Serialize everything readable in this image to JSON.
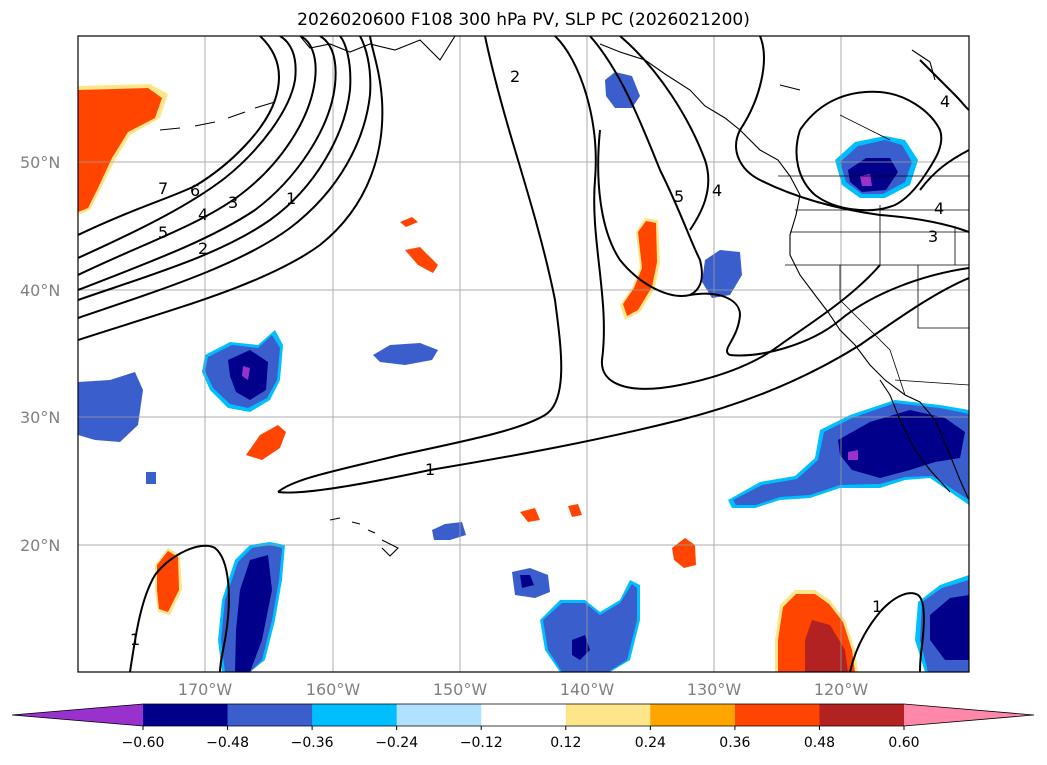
{
  "title": "2026020600 F108 300 hPa PV, SLP PC (2026021200)",
  "map": {
    "lat_labels": [
      "50°N",
      "40°N",
      "30°N",
      "20°N"
    ],
    "lon_labels": [
      "170°W",
      "160°W",
      "150°W",
      "140°W",
      "130°W",
      "120°W"
    ],
    "contour_labels": [
      "7",
      "6",
      "5",
      "4",
      "3",
      "2",
      "1",
      "2",
      "5",
      "4",
      "3",
      "1",
      "4",
      "4",
      "1",
      "1"
    ]
  },
  "colorbar": {
    "ticks": [
      "−0.60",
      "−0.48",
      "−0.36",
      "−0.24",
      "−0.12",
      "0.12",
      "0.24",
      "0.36",
      "0.48",
      "0.60"
    ],
    "colors": [
      "#9932cc",
      "#00008b",
      "#3a5fcd",
      "#00bfff",
      "#b0e2ff",
      "#ffffff",
      "#fde68a",
      "#ffa500",
      "#ff4500",
      "#b22222",
      "#ff88aa"
    ]
  },
  "colors": {
    "neg_strong": "#00008b",
    "neg_med": "#3a5fcd",
    "neg_weak": "#00bfff",
    "neg_min": "#9932cc",
    "pos_weak": "#fde68a",
    "pos_med": "#ff4500",
    "pos_strong": "#b22222"
  }
}
